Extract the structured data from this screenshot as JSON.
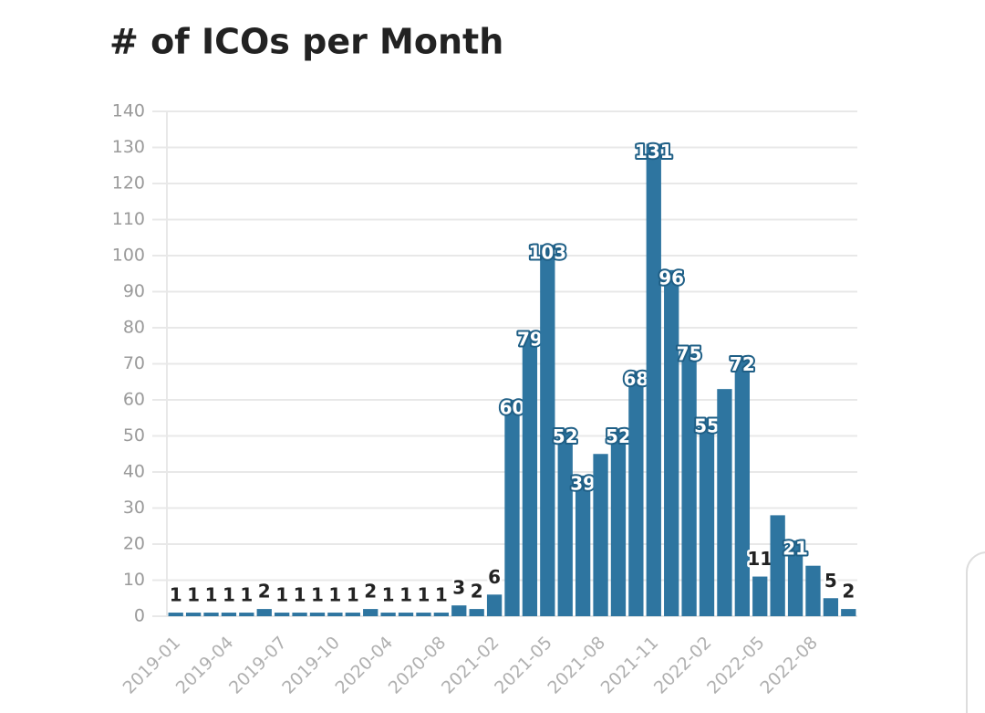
{
  "chart_data": {
    "type": "bar",
    "title": "# of ICOs per Month",
    "categories": [
      "2019-01",
      null,
      null,
      "2019-04",
      null,
      null,
      "2019-07",
      null,
      null,
      "2019-10",
      null,
      null,
      "2020-04",
      null,
      null,
      "2020-08",
      null,
      null,
      "2021-02",
      null,
      null,
      "2021-05",
      null,
      null,
      "2021-08",
      null,
      null,
      "2021-11",
      null,
      null,
      "2022-02",
      null,
      null,
      "2022-05",
      null,
      null,
      "2022-08",
      null,
      null
    ],
    "values": [
      1,
      1,
      1,
      1,
      1,
      2,
      1,
      1,
      1,
      1,
      1,
      2,
      1,
      1,
      1,
      1,
      3,
      2,
      6,
      60,
      79,
      103,
      52,
      39,
      45,
      52,
      68,
      131,
      96,
      75,
      55,
      63,
      72,
      11,
      28,
      21,
      14,
      5,
      2
    ],
    "value_labels": [
      "1",
      "1",
      "1",
      "1",
      "1",
      "2",
      "1",
      "1",
      "1",
      "1",
      "1",
      "2",
      "1",
      "1",
      "1",
      "1",
      "3",
      "2",
      "6",
      "60",
      "79",
      "103",
      "52",
      "39",
      null,
      "52",
      "68",
      "131",
      "96",
      "75",
      "55",
      null,
      "72",
      "11",
      null,
      "21",
      null,
      "5",
      "2"
    ],
    "color": "#2e75a0",
    "ylim": [
      0,
      140
    ],
    "yticks": [
      0,
      10,
      20,
      30,
      40,
      50,
      60,
      70,
      80,
      90,
      100,
      110,
      120,
      130,
      140
    ],
    "grid": true
  }
}
